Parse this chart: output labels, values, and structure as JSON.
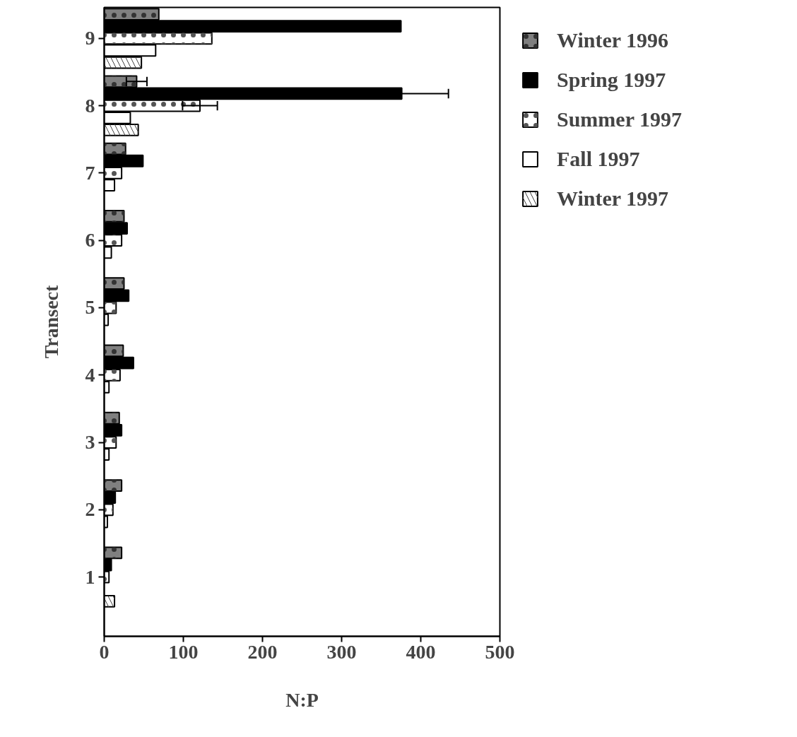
{
  "chart_data": {
    "type": "bar",
    "orientation": "horizontal",
    "xlabel": "N:P",
    "ylabel": "Transect",
    "categories": [
      "9",
      "8",
      "7",
      "6",
      "5",
      "4",
      "3",
      "2",
      "1"
    ],
    "series": [
      {
        "name": "Winter 1996",
        "color": "#808080",
        "values": [
          69,
          41,
          27,
          25,
          25,
          24,
          19,
          22,
          22
        ],
        "errors": [
          null,
          13,
          null,
          null,
          null,
          null,
          null,
          null,
          null
        ]
      },
      {
        "name": "Spring 1997",
        "color": "#000000",
        "values": [
          375,
          376,
          49,
          29,
          31,
          37,
          22,
          14,
          9
        ],
        "errors": [
          null,
          59,
          null,
          null,
          null,
          null,
          null,
          null,
          null
        ]
      },
      {
        "name": "Summer 1997",
        "color": "#ffffff",
        "values": [
          136,
          121,
          22,
          22,
          15,
          20,
          15,
          11,
          6
        ],
        "errors": [
          null,
          22,
          null,
          null,
          null,
          null,
          null,
          null,
          null
        ]
      },
      {
        "name": "Fall 1997",
        "color": "#ffffff",
        "values": [
          65,
          33,
          13,
          9,
          5,
          6,
          6,
          4,
          null
        ]
      },
      {
        "name": "Winter 1997",
        "color": "#ffffff",
        "values": [
          47,
          43,
          null,
          null,
          null,
          null,
          null,
          null,
          13
        ]
      }
    ],
    "xlim": [
      0,
      500
    ],
    "xticks": [
      0,
      100,
      200,
      300,
      400,
      500
    ],
    "grid": false,
    "legend": "right"
  }
}
